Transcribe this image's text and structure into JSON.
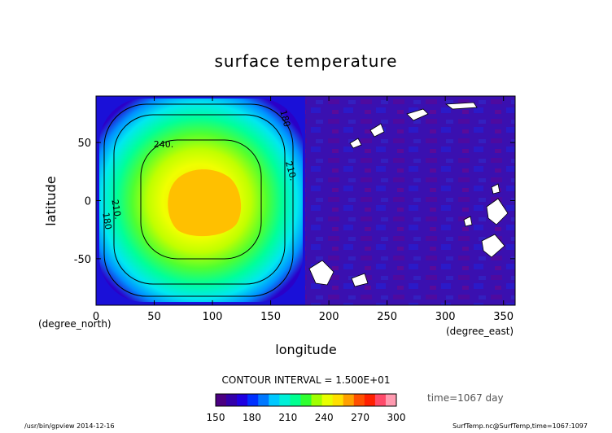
{
  "chart_data": {
    "type": "heatmap",
    "title": "surface temperature",
    "xlabel": "longitude",
    "ylabel": "latitude",
    "x_unit": "(degree_east)",
    "y_unit": "(degree_north)",
    "xlim": [
      0,
      360
    ],
    "ylim": [
      -90,
      90
    ],
    "x_ticks": [
      0,
      50,
      100,
      150,
      200,
      250,
      300,
      350
    ],
    "y_ticks": [
      -50,
      0,
      50
    ],
    "contour_interval_text": "CONTOUR INTERVAL = 1.500E+01",
    "contour_levels": [
      180,
      210,
      240
    ],
    "contour_labels": [
      {
        "text": "180",
        "lon": 160,
        "lat": 70
      },
      {
        "text": "240.",
        "lon": 58,
        "lat": 46
      },
      {
        "text": "210.",
        "lon": 165,
        "lat": 25
      },
      {
        "text": "210.",
        "lon": 15,
        "lat": -8
      },
      {
        "text": "180",
        "lon": 7,
        "lat": -18
      }
    ],
    "hot_spot": {
      "lon": 95,
      "lat": 0,
      "max_value": 265
    },
    "field_description_values": {
      "dayside_center": 260,
      "dayside_edge": 165,
      "nightside": 155
    },
    "time_label": "time=1067 day",
    "colorbar": {
      "range": [
        150,
        300
      ],
      "tick_labels": [
        "150",
        "180",
        "210",
        "240",
        "270",
        "300"
      ],
      "colors": [
        "#4b0082",
        "#3300aa",
        "#1f00e0",
        "#0030ff",
        "#0078ff",
        "#00c8ff",
        "#00f0d8",
        "#00ff90",
        "#30ff30",
        "#a0ff00",
        "#e8ff00",
        "#ffe000",
        "#ffa000",
        "#ff5000",
        "#ff2000",
        "#ff4a6a",
        "#ff9ab0"
      ]
    },
    "grid": false
  },
  "footer": {
    "left": "/usr/bin/gpview  2014-12-16",
    "right": "SurfTemp.nc@SurfTemp,time=1067:1097"
  }
}
